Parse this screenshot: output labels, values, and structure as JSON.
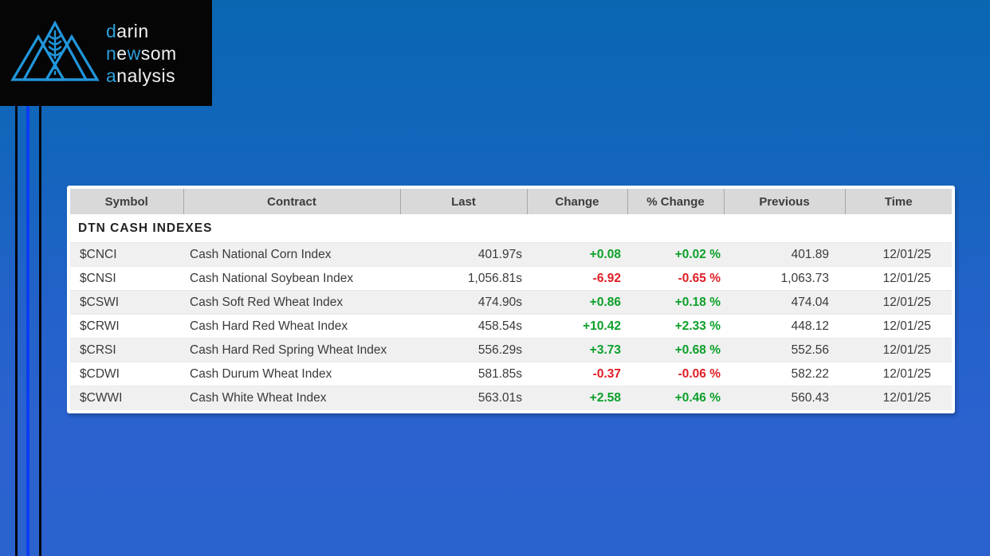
{
  "logo": {
    "accent_color": "#2b9fd9",
    "text_color": "#f2f2f2",
    "icon": "mountains-wheat-icon",
    "lines": [
      {
        "segments": [
          {
            "text": "d",
            "color": "blue"
          },
          {
            "text": "arin",
            "color": "white"
          }
        ]
      },
      {
        "segments": [
          {
            "text": "n",
            "color": "blue"
          },
          {
            "text": "e",
            "color": "white"
          },
          {
            "text": "w",
            "color": "blue"
          },
          {
            "text": "som",
            "color": "white"
          }
        ]
      },
      {
        "segments": [
          {
            "text": "a",
            "color": "blue"
          },
          {
            "text": "nalysis",
            "color": "white"
          }
        ]
      }
    ]
  },
  "quote_table": {
    "columns": [
      "Symbol",
      "Contract",
      "Last",
      "Change",
      "% Change",
      "Previous",
      "Time"
    ],
    "section_title": "DTN CASH INDEXES",
    "colors": {
      "up": "#0ca02a",
      "down": "#df1d25"
    },
    "rows": [
      {
        "symbol": "$CNCI",
        "contract": "Cash National Corn Index",
        "last": "401.97s",
        "change": "+0.08",
        "pct_change": "+0.02 %",
        "previous": "401.89",
        "time": "12/01/25",
        "direction": "up"
      },
      {
        "symbol": "$CNSI",
        "contract": "Cash National Soybean Index",
        "last": "1,056.81s",
        "change": "-6.92",
        "pct_change": "-0.65 %",
        "previous": "1,063.73",
        "time": "12/01/25",
        "direction": "down"
      },
      {
        "symbol": "$CSWI",
        "contract": "Cash Soft Red Wheat Index",
        "last": "474.90s",
        "change": "+0.86",
        "pct_change": "+0.18 %",
        "previous": "474.04",
        "time": "12/01/25",
        "direction": "up"
      },
      {
        "symbol": "$CRWI",
        "contract": "Cash Hard Red Wheat Index",
        "last": "458.54s",
        "change": "+10.42",
        "pct_change": "+2.33 %",
        "previous": "448.12",
        "time": "12/01/25",
        "direction": "up"
      },
      {
        "symbol": "$CRSI",
        "contract": "Cash Hard Red Spring Wheat Index",
        "last": "556.29s",
        "change": "+3.73",
        "pct_change": "+0.68 %",
        "previous": "552.56",
        "time": "12/01/25",
        "direction": "up"
      },
      {
        "symbol": "$CDWI",
        "contract": "Cash Durum Wheat Index",
        "last": "581.85s",
        "change": "-0.37",
        "pct_change": "-0.06 %",
        "previous": "582.22",
        "time": "12/01/25",
        "direction": "down"
      },
      {
        "symbol": "$CWWI",
        "contract": "Cash White Wheat Index",
        "last": "563.01s",
        "change": "+2.58",
        "pct_change": "+0.46 %",
        "previous": "560.43",
        "time": "12/01/25",
        "direction": "up"
      }
    ]
  }
}
